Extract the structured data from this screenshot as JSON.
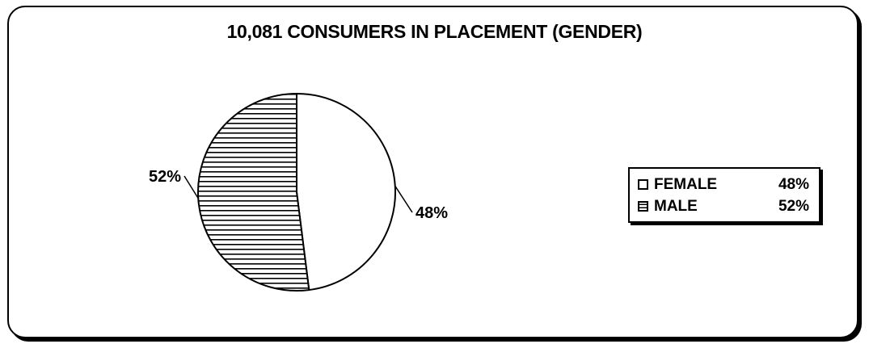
{
  "chart_data": {
    "type": "pie",
    "title": "10,081 CONSUMERS IN PLACEMENT (GENDER)",
    "slices": [
      {
        "label": "FEMALE",
        "value": 48,
        "value_label": "48%",
        "fill": "white"
      },
      {
        "label": "MALE",
        "value": 52,
        "value_label": "52%",
        "fill": "horizontal-stripes"
      }
    ],
    "legend": {
      "placement": "right",
      "entries": [
        {
          "label": "FEMALE",
          "value": "48%"
        },
        {
          "label": "MALE",
          "value": "52%"
        }
      ]
    },
    "colors": {
      "line": "#000000",
      "background": "#ffffff"
    }
  }
}
